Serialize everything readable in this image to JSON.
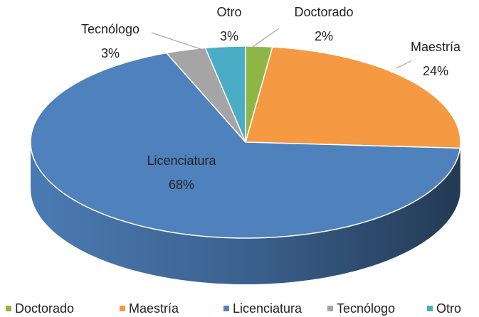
{
  "chart_data": {
    "type": "pie3d",
    "categories": [
      "Doctorado",
      "Maestría",
      "Licenciatura",
      "Tecnólogo",
      "Otro"
    ],
    "values": [
      2,
      24,
      68,
      3,
      3
    ],
    "value_labels": [
      "2%",
      "24%",
      "68%",
      "3%",
      "3%"
    ],
    "colors": [
      "#8db646",
      "#f59942",
      "#4f81bd",
      "#a5a5a5",
      "#4bacc6"
    ],
    "legend": "bottom"
  }
}
